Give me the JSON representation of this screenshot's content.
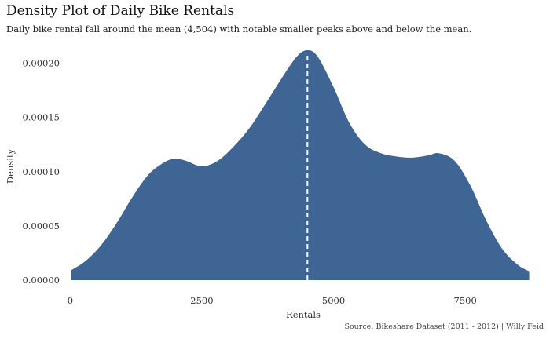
{
  "chart_data": {
    "type": "area",
    "title": "Density Plot of Daily Bike Rentals",
    "subtitle": "Daily bike rental fall around the mean (4,504) with notable smaller peaks above and below the mean.",
    "caption": "Source: Bikeshare Dataset (2011 - 2012) | Willy Feid",
    "xlabel": "Rentals",
    "ylabel": "Density",
    "xlim": [
      -50,
      8900
    ],
    "ylim": [
      0,
      0.000212
    ],
    "x_ticks": [
      {
        "value": 0,
        "label": "0"
      },
      {
        "value": 2500,
        "label": "2500"
      },
      {
        "value": 5000,
        "label": "5000"
      },
      {
        "value": 7500,
        "label": "7500"
      }
    ],
    "y_ticks": [
      {
        "value": 0,
        "label": "0.00000"
      },
      {
        "value": 5e-05,
        "label": "0.00005"
      },
      {
        "value": 0.0001,
        "label": "0.00010"
      },
      {
        "value": 0.00015,
        "label": "0.00015"
      },
      {
        "value": 0.0002,
        "label": "0.00020"
      }
    ],
    "grid": false,
    "legend": "none",
    "fill_color": "#3f6594",
    "mean_line_color": "#ffffff",
    "mean": 4504,
    "series": [
      {
        "x": [
          22,
          300,
          600,
          900,
          1200,
          1500,
          1800,
          2000,
          2200,
          2500,
          2800,
          3100,
          3400,
          3700,
          4000,
          4300,
          4504,
          4700,
          5000,
          5300,
          5600,
          5900,
          6200,
          6500,
          6800,
          7000,
          7300,
          7600,
          7900,
          8200,
          8500,
          8714
        ],
        "y": [
          9.2e-06,
          1.8e-05,
          3.3e-05,
          5.4e-05,
          7.8e-05,
          9.8e-05,
          0.000109,
          0.000112,
          0.00011,
          0.000105,
          0.00011,
          0.000123,
          0.00014,
          0.000162,
          0.000185,
          0.000206,
          0.000212,
          0.000206,
          0.000178,
          0.000145,
          0.000125,
          0.000117,
          0.000114,
          0.000113,
          0.000115,
          0.000117,
          0.00011,
          8.7e-05,
          5.5e-05,
          2.9e-05,
          1.4e-05,
          8.2e-06
        ]
      }
    ]
  }
}
